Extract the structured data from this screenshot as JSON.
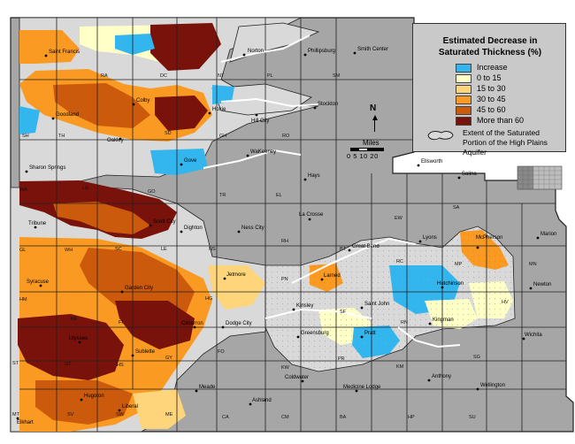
{
  "legend": {
    "title_line1": "Estimated Decrease in",
    "title_line2": "Saturated Thickness (%)",
    "items": [
      {
        "label": "Increase",
        "color": "#33b5ee"
      },
      {
        "label": "0 to 15",
        "color": "#ffffc8"
      },
      {
        "label": "15 to 30",
        "color": "#fed57a"
      },
      {
        "label": "30 to 45",
        "color": "#fa9a22"
      },
      {
        "label": "45 to 60",
        "color": "#cc5a0c"
      },
      {
        "label": "More than 60",
        "color": "#78120a"
      }
    ],
    "aquifer_note": "Extent of the Saturated Portion of the High Plains Aquifer"
  },
  "north_label": "N",
  "scale": {
    "title": "Miles",
    "ticks": "0  5  10    20"
  },
  "colors": {
    "county_fill": "#a6a6a6",
    "aquifer_fill": "#d9d9d9",
    "border": "#202020"
  },
  "cities": [
    "Saint Francis",
    "Norton",
    "Phillipsburg",
    "Smith Center",
    "Goodland",
    "Colby",
    "Hoxie",
    "Oakley",
    "Hill City",
    "Stockton",
    "Gove",
    "WaKeeney",
    "Sharon Springs",
    "Hays",
    "Ellsworth",
    "Salina",
    "La Crosse",
    "Tribune",
    "Scott City",
    "Dighton",
    "Ness City",
    "Great Bend",
    "Lyons",
    "McPherson",
    "Marion",
    "Syracuse",
    "Jetmore",
    "Larned",
    "Saint John",
    "Hutchinson",
    "Newton",
    "Garden City",
    "Kinsley",
    "Dodge City",
    "Cimarron",
    "Greensburg",
    "Pratt",
    "Kingman",
    "Wichita",
    "Sublette",
    "Ulysses",
    "Meade",
    "Coldwater",
    "Medicine Lodge",
    "Wellington",
    "Hugoton",
    "Liberal",
    "Ashland",
    "Anthony",
    "Elkhart"
  ],
  "county_abbrevs": [
    "RA",
    "DC",
    "NT",
    "PL",
    "SM",
    "SH",
    "TH",
    "SD",
    "GH",
    "RO",
    "WA",
    "LG",
    "GO",
    "TR",
    "EL",
    "EW",
    "SA",
    "GL",
    "WH",
    "SC",
    "LE",
    "NS",
    "RH",
    "BT",
    "RC",
    "MP",
    "MN",
    "HM",
    "KE",
    "FI",
    "HG",
    "PN",
    "SF",
    "RN",
    "HV",
    "ST",
    "GT",
    "HS",
    "GY",
    "FO",
    "KW",
    "PR",
    "KM",
    "SG",
    "MT",
    "SV",
    "SW",
    "ME",
    "CA",
    "CM",
    "BA",
    "HP",
    "SU"
  ]
}
